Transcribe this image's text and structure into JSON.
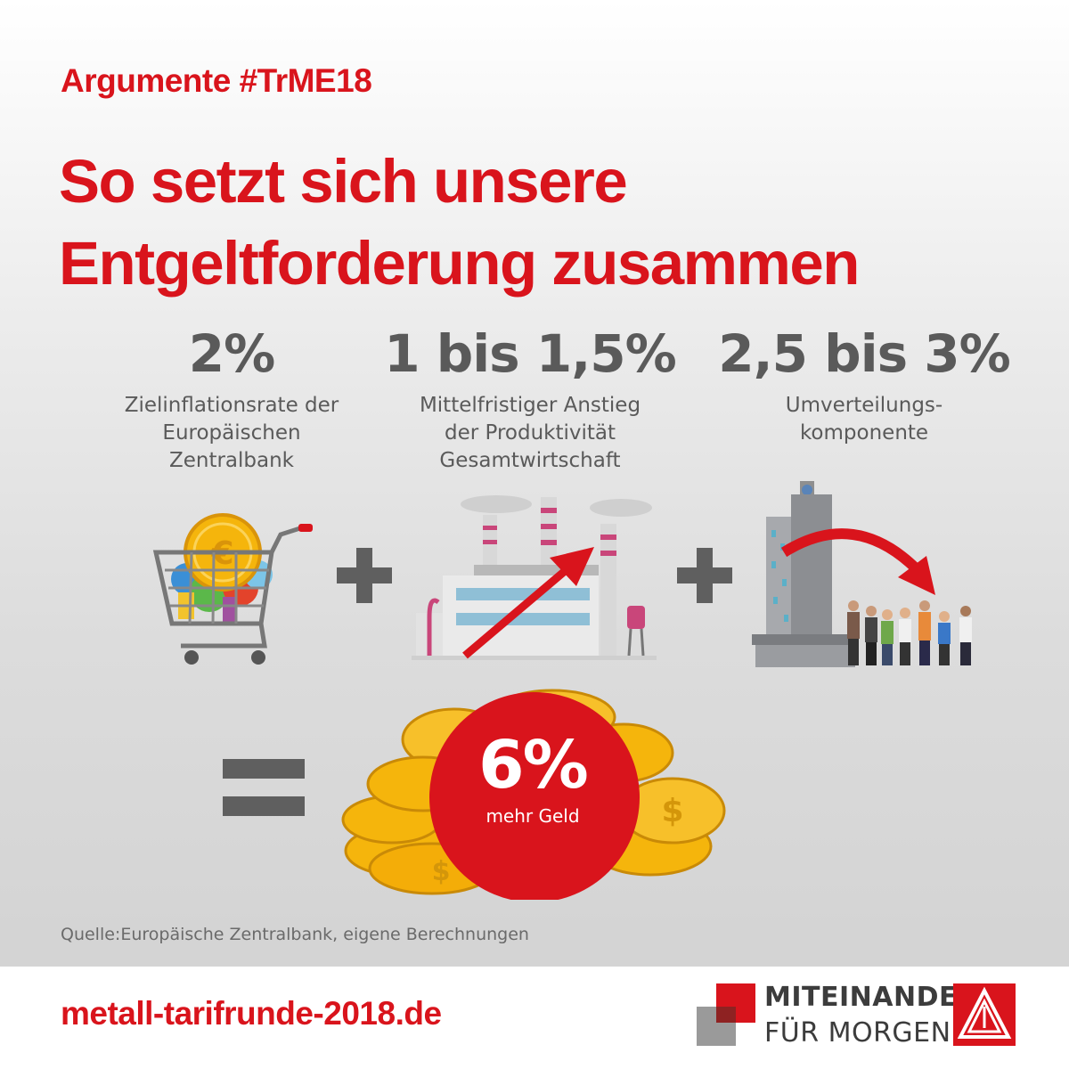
{
  "header": {
    "kicker": "Argumente #TrME18",
    "title_line1": "So setzt sich unsere",
    "title_line2": "Entgeltforderung zusammen"
  },
  "components": [
    {
      "value": "2%",
      "desc_lines": [
        "Zielinflationsrate der",
        "Europäischen",
        "Zentralbank"
      ],
      "icon": "shopping-cart-euro-icon"
    },
    {
      "value": "1 bis 1,5%",
      "desc_lines": [
        "Mittelfristiger Anstieg",
        "der Produktivität",
        "Gesamtwirtschaft"
      ],
      "icon": "factory-arrow-icon"
    },
    {
      "value": "2,5 bis 3%",
      "desc_lines": [
        "Umverteilungs-",
        "komponente"
      ],
      "icon": "tower-people-icon"
    }
  ],
  "operators": {
    "plus": "+",
    "equals": "="
  },
  "result": {
    "value": "6%",
    "label": "mehr Geld",
    "icon": "coin-stack-icon"
  },
  "source": "Quelle:Europäische Zentralbank, eigene Berechnungen",
  "footer": {
    "url": "metall-tarifrunde-2018.de",
    "brand_line1": "MITEINANDER",
    "brand_line2": "FÜR MORGEN",
    "logo": "ig-metall-logo"
  },
  "colors": {
    "accent": "#d9141c",
    "text_gray": "#5a5a5a",
    "operator_gray": "#5f5f5f",
    "gold": "#f5b50c"
  }
}
